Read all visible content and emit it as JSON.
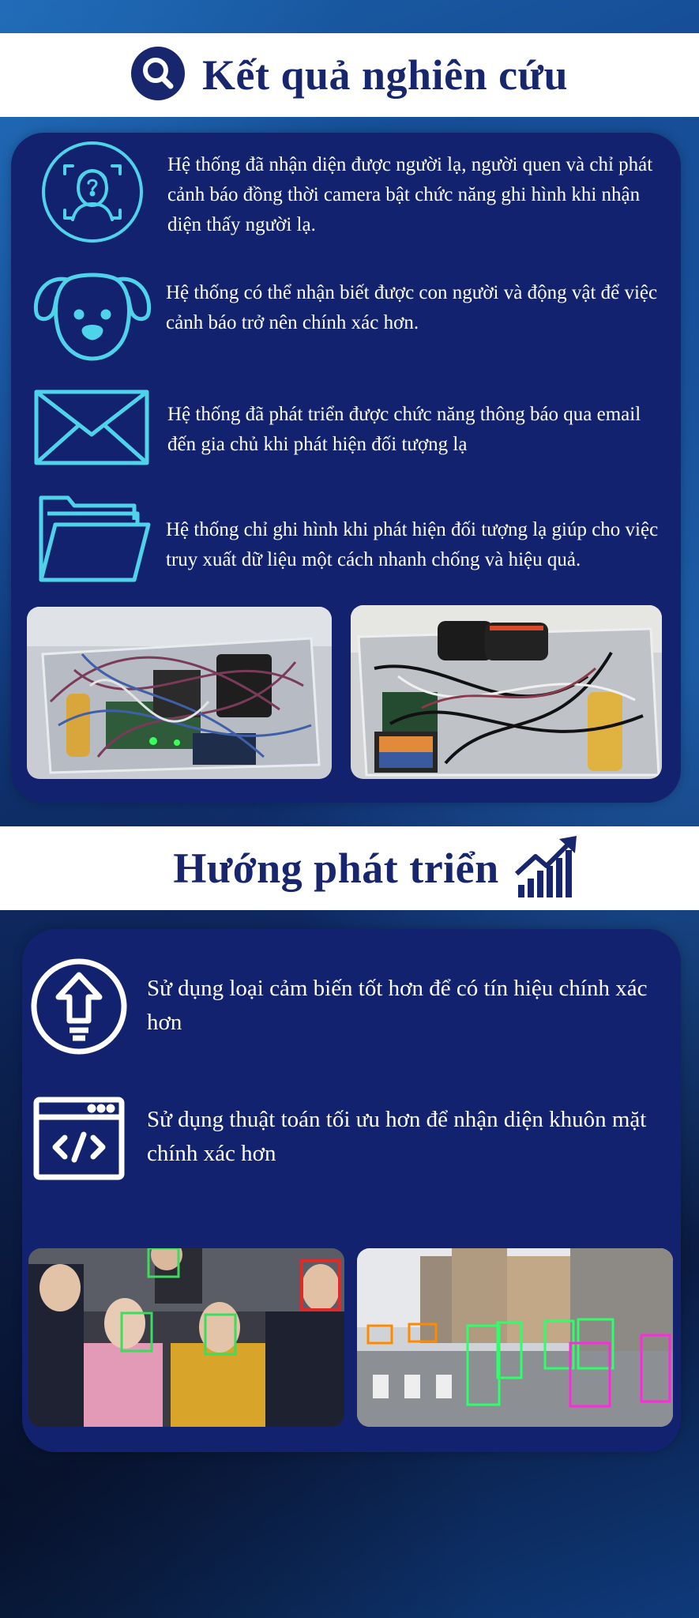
{
  "results": {
    "title": "Kết quả nghiên cứu",
    "items": [
      {
        "icon": "face-recognition-icon",
        "text": "Hệ thống đã nhận diện được người lạ, người quen và chỉ phát cảnh báo đồng thời camera bật chức năng ghi hình khi nhận diện thấy người lạ."
      },
      {
        "icon": "dog-icon",
        "text": "Hệ thống có thể nhận biết được con người và động vật để việc cảnh báo trở nên chính xác hơn."
      },
      {
        "icon": "envelope-icon",
        "text": "Hệ thống đã phát triển được chức năng thông báo qua email đến gia chủ khi phát hiện đối tượng lạ"
      },
      {
        "icon": "folder-icon",
        "text": "Hệ thống chỉ ghi hình khi phát hiện đối tượng lạ giúp cho việc truy xuất dữ liệu một cách nhanh chống và hiệu quả."
      }
    ]
  },
  "development": {
    "title": "Hướng phát triển",
    "items": [
      {
        "icon": "upload-bulb-icon",
        "text": "Sử dụng loại cảm biến tốt hơn để có tín hiệu chính xác hơn"
      },
      {
        "icon": "code-window-icon",
        "text": "Sử dụng thuật toán tối ưu hơn để nhận diện khuôn mặt chính xác hơn"
      }
    ]
  },
  "colors": {
    "banner_text": "#18266e",
    "panel": "#13226e",
    "icon_cyan": "#4fd3ea",
    "icon_white": "#ffffff"
  }
}
